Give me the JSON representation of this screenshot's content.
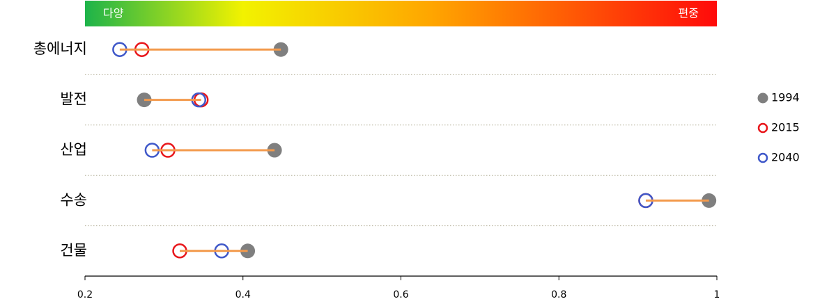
{
  "chart_data": {
    "type": "dot",
    "scale_labels": [
      "다양",
      "편중"
    ],
    "categories": [
      "총에너지",
      "발전",
      "산업",
      "수송",
      "건물"
    ],
    "series": [
      {
        "name": "1994",
        "color": "#7f7f7f",
        "marker": "filled",
        "values": [
          0.448,
          0.275,
          0.44,
          0.99,
          0.406
        ]
      },
      {
        "name": "2015",
        "color": "#e8161b",
        "marker": "hollow",
        "values": [
          0.272,
          0.347,
          0.305,
          0.91,
          0.32
        ]
      },
      {
        "name": "2040",
        "color": "#3f58c9",
        "marker": "hollow",
        "values": [
          0.244,
          0.344,
          0.285,
          0.91,
          0.373
        ]
      }
    ],
    "range_line_color": "#f39a4c",
    "xlim": [
      0.2,
      1
    ],
    "xticks": [
      0.2,
      0.4,
      0.6,
      0.8,
      1
    ],
    "legend": "right"
  }
}
